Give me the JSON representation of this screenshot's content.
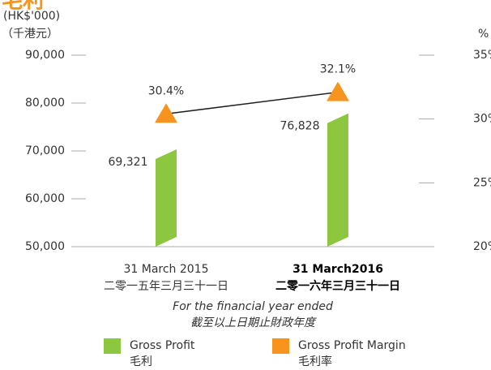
{
  "chart_data": {
    "type": "bar_line",
    "title": "毛利",
    "y_label": "(HK$'000)",
    "y_label_zh": "（千港元）",
    "y2_label": "%",
    "x_label": "For the financial year ended",
    "x_label_zh": "截至以上日期止財政年度",
    "categories": [
      "31 March 2015",
      "31 March2016"
    ],
    "categories_zh": [
      "二零一五年三月三十一日",
      "二零一六年三月三十一日"
    ],
    "series": [
      {
        "name": "Gross Profit",
        "name_zh": "毛利",
        "color": "#8dc63f",
        "type": "bar",
        "values": [
          69321,
          76828
        ],
        "value_labels": [
          "69,321",
          "76,828"
        ]
      },
      {
        "name": "Gross Profit Margin",
        "name_zh": "毛利率",
        "color": "#f7941d",
        "type": "line",
        "axis": "y2",
        "values": [
          30.4,
          32.1
        ],
        "value_labels": [
          "30.4%",
          "32.1%"
        ]
      }
    ],
    "ylim": [
      50000,
      90000
    ],
    "yticks": [
      {
        "value": 50000,
        "label": "50,000"
      },
      {
        "value": 60000,
        "label": "60,000"
      },
      {
        "value": 70000,
        "label": "70,000"
      },
      {
        "value": 80000,
        "label": "80,000"
      },
      {
        "value": 90000,
        "label": "90,000"
      }
    ],
    "y2lim": [
      20,
      35
    ],
    "y2ticks": [
      {
        "value": 20,
        "label": "20%"
      },
      {
        "value": 25,
        "label": "25%"
      },
      {
        "value": 30,
        "label": "30%"
      },
      {
        "value": 35,
        "label": "35%"
      }
    ]
  }
}
